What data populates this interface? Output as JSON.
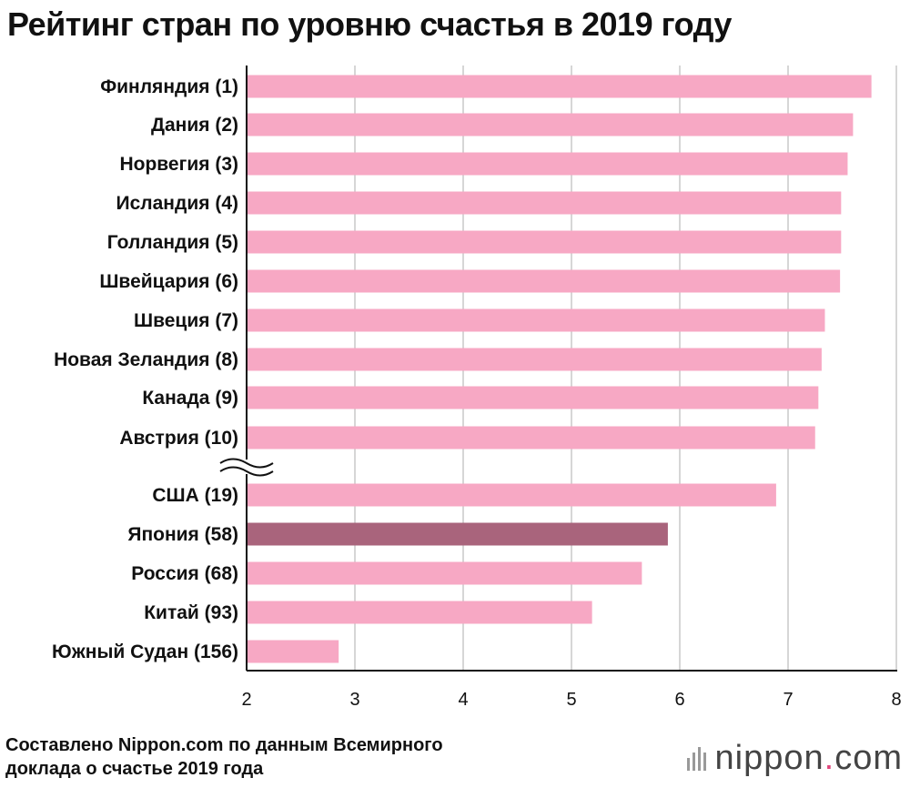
{
  "title": "Рейтинг стран по уровню счастья в 2019 году",
  "footer": {
    "line1": "Составлено Nippon.com по данным Всемирного",
    "line2": "доклада о счастье 2019 года"
  },
  "logo": {
    "text": "nippon",
    "dot": ".",
    "suffix": "com"
  },
  "colors": {
    "bar": "#f7a8c4",
    "highlight": "#a9647c",
    "grid": "#c8c8c8",
    "axis": "#111111"
  },
  "chart_data": {
    "type": "bar",
    "orientation": "horizontal",
    "title": "Рейтинг стран по уровню счастья в 2019 году",
    "categories": [
      "Финляндия (1)",
      "Дания (2)",
      "Норвегия (3)",
      "Исландия (4)",
      "Голландия (5)",
      "Швейцария (6)",
      "Швеция (7)",
      "Новая Зеландия (8)",
      "Канада (9)",
      "Австрия (10)",
      "США (19)",
      "Япония (58)",
      "Россия (68)",
      "Китай (93)",
      "Южный Судан (156)"
    ],
    "values": [
      7.77,
      7.6,
      7.55,
      7.49,
      7.49,
      7.48,
      7.34,
      7.31,
      7.28,
      7.25,
      6.89,
      5.89,
      5.65,
      5.19,
      2.85
    ],
    "highlight": "Япония (58)",
    "axis_break_after": "Австрия (10)",
    "xlim": [
      2,
      8
    ],
    "xticks": [
      "2",
      "3",
      "4",
      "5",
      "6",
      "7",
      "8"
    ],
    "grid": true
  }
}
